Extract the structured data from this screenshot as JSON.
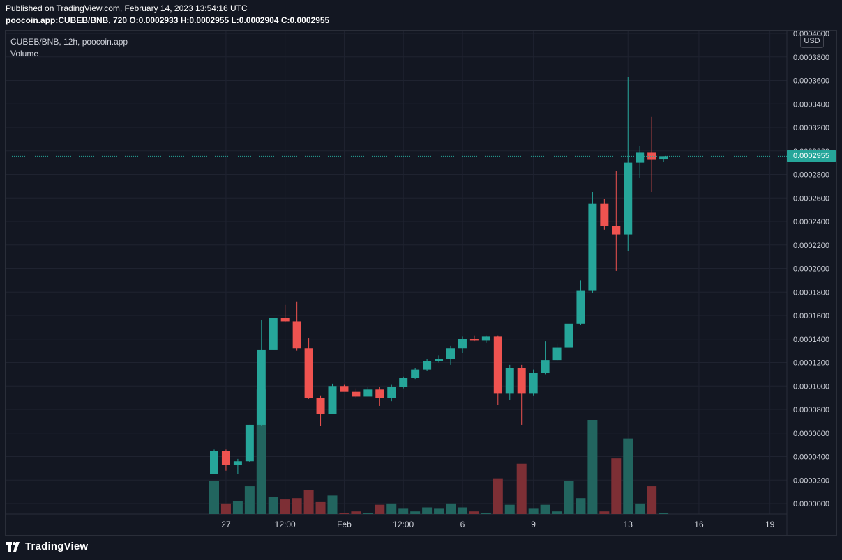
{
  "header": {
    "published": "Published on TradingView.com, February 14, 2023 13:54:16 UTC",
    "symbol_line": "poocoin.app:CUBEB/BNB, 720 O:0.0002933 H:0.0002955 L:0.0002904 C:0.0002955"
  },
  "legend": {
    "title": "CUBEB/BNB, 12h, poocoin.app",
    "volume_label": "Volume"
  },
  "currency": "USD",
  "last_price_label": "0.0002955",
  "footer": {
    "brand": "TradingView"
  },
  "colors": {
    "up": "#26a69a",
    "down": "#ef5350",
    "up_volume": "#22655f",
    "down_volume": "#7d2f35",
    "background": "#131722",
    "grid": "#1f2330"
  },
  "chart_data": {
    "type": "candlestick",
    "interval": "12h",
    "y_ticks": [
      "0.0000000",
      "0.0000200",
      "0.0000400",
      "0.0000600",
      "0.0000800",
      "0.0001000",
      "0.0001200",
      "0.0001400",
      "0.0001600",
      "0.0001800",
      "0.0002000",
      "0.0002200",
      "0.0002400",
      "0.0002600",
      "0.0002800",
      "0.0003000",
      "0.0003200",
      "0.0003400",
      "0.0003600",
      "0.0003800",
      "0.0004000"
    ],
    "ylim": [
      0.0,
      0.0004
    ],
    "x_ticks": [
      {
        "label": "27",
        "index": 1
      },
      {
        "label": "12:00",
        "index": 6
      },
      {
        "label": "Feb",
        "index": 11
      },
      {
        "label": "12:00",
        "index": 16
      },
      {
        "label": "6",
        "index": 21
      },
      {
        "label": "9",
        "index": 27
      },
      {
        "label": "13",
        "index": 35
      },
      {
        "label": "16",
        "index": 41
      },
      {
        "label": "19",
        "index": 47
      }
    ],
    "candles": [
      {
        "o": 2.5e-05,
        "h": 4.6e-05,
        "l": 2.5e-05,
        "c": 4.5e-05,
        "v": 2.5e-05
      },
      {
        "o": 4.5e-05,
        "h": 4.6e-05,
        "l": 2.8e-05,
        "c": 3.3e-05,
        "v": 8e-06
      },
      {
        "o": 3.3e-05,
        "h": 3.8e-05,
        "l": 2.5e-05,
        "c": 3.6e-05,
        "v": 1e-05
      },
      {
        "o": 3.6e-05,
        "h": 6.7e-05,
        "l": 3.5e-05,
        "c": 6.7e-05,
        "v": 2.1e-05
      },
      {
        "o": 6.7e-05,
        "h": 0.000156,
        "l": 6.6e-05,
        "c": 0.000131,
        "v": 9.4e-05
      },
      {
        "o": 0.000131,
        "h": 0.000158,
        "l": 0.000131,
        "c": 0.000158,
        "v": 1.3e-05
      },
      {
        "o": 0.000158,
        "h": 0.000169,
        "l": 0.000154,
        "c": 0.000155,
        "v": 1.1e-05
      },
      {
        "o": 0.000155,
        "h": 0.000172,
        "l": 0.00013,
        "c": 0.000132,
        "v": 1.2e-05
      },
      {
        "o": 0.000132,
        "h": 0.000141,
        "l": 8.9e-05,
        "c": 9e-05,
        "v": 1.8e-05
      },
      {
        "o": 9e-05,
        "h": 9.2e-05,
        "l": 6.6e-05,
        "c": 7.6e-05,
        "v": 9e-06
      },
      {
        "o": 7.6e-05,
        "h": 0.000102,
        "l": 7.6e-05,
        "c": 0.0001,
        "v": 1.4e-05
      },
      {
        "o": 0.0001,
        "h": 0.000101,
        "l": 9.6e-05,
        "c": 9.5e-05,
        "v": 1e-06
      },
      {
        "o": 9.5e-05,
        "h": 9.8e-05,
        "l": 9e-05,
        "c": 9.1e-05,
        "v": 2e-06
      },
      {
        "o": 9.1e-05,
        "h": 9.9e-05,
        "l": 9.1e-05,
        "c": 9.7e-05,
        "v": 1e-06
      },
      {
        "o": 9.7e-05,
        "h": 9.9e-05,
        "l": 8.3e-05,
        "c": 9e-05,
        "v": 7e-06
      },
      {
        "o": 9e-05,
        "h": 0.000101,
        "l": 8.7e-05,
        "c": 9.9e-05,
        "v": 8e-06
      },
      {
        "o": 9.9e-05,
        "h": 0.000108,
        "l": 9.8e-05,
        "c": 0.000107,
        "v": 4e-06
      },
      {
        "o": 0.000107,
        "h": 0.000115,
        "l": 0.000106,
        "c": 0.000114,
        "v": 2e-06
      },
      {
        "o": 0.000114,
        "h": 0.000123,
        "l": 0.000113,
        "c": 0.000121,
        "v": 5e-06
      },
      {
        "o": 0.000121,
        "h": 0.000126,
        "l": 0.00012,
        "c": 0.000123,
        "v": 4e-06
      },
      {
        "o": 0.000123,
        "h": 0.000134,
        "l": 0.000118,
        "c": 0.000132,
        "v": 8e-06
      },
      {
        "o": 0.000132,
        "h": 0.000142,
        "l": 0.000128,
        "c": 0.00014,
        "v": 5e-06
      },
      {
        "o": 0.00014,
        "h": 0.000143,
        "l": 0.000138,
        "c": 0.000139,
        "v": 2e-06
      },
      {
        "o": 0.000139,
        "h": 0.000143,
        "l": 0.000137,
        "c": 0.000142,
        "v": 1e-06
      },
      {
        "o": 0.000142,
        "h": 0.000143,
        "l": 8.4e-05,
        "c": 9.4e-05,
        "v": 2.7e-05
      },
      {
        "o": 9.4e-05,
        "h": 0.000118,
        "l": 8.8e-05,
        "c": 0.000115,
        "v": 7e-06
      },
      {
        "o": 0.000115,
        "h": 0.000118,
        "l": 6.7e-05,
        "c": 9.4e-05,
        "v": 3.8e-05
      },
      {
        "o": 9.4e-05,
        "h": 0.000114,
        "l": 9.2e-05,
        "c": 0.000111,
        "v": 4e-06
      },
      {
        "o": 0.000111,
        "h": 0.000138,
        "l": 0.00011,
        "c": 0.000122,
        "v": 7e-06
      },
      {
        "o": 0.000122,
        "h": 0.000136,
        "l": 0.000121,
        "c": 0.000133,
        "v": 2e-06
      },
      {
        "o": 0.000133,
        "h": 0.000168,
        "l": 0.00013,
        "c": 0.000153,
        "v": 2.5e-05
      },
      {
        "o": 0.000153,
        "h": 0.00019,
        "l": 0.000152,
        "c": 0.000181,
        "v": 1.2e-05
      },
      {
        "o": 0.000181,
        "h": 0.000265,
        "l": 0.000179,
        "c": 0.000255,
        "v": 7.1e-05
      },
      {
        "o": 0.000255,
        "h": 0.000259,
        "l": 0.000233,
        "c": 0.000236,
        "v": 2e-06
      },
      {
        "o": 0.000236,
        "h": 0.000283,
        "l": 0.000198,
        "c": 0.000229,
        "v": 4.2e-05
      },
      {
        "o": 0.000229,
        "h": 0.000363,
        "l": 0.000215,
        "c": 0.00029,
        "v": 5.7e-05
      },
      {
        "o": 0.00029,
        "h": 0.000304,
        "l": 0.000277,
        "c": 0.000299,
        "v": 8e-06
      },
      {
        "o": 0.000299,
        "h": 0.000329,
        "l": 0.000265,
        "c": 0.000293,
        "v": 2.1e-05
      },
      {
        "o": 0.0002933,
        "h": 0.0002955,
        "l": 0.0002904,
        "c": 0.0002955,
        "v": 1e-06
      }
    ],
    "last_price": 0.0002955,
    "grid": true
  }
}
